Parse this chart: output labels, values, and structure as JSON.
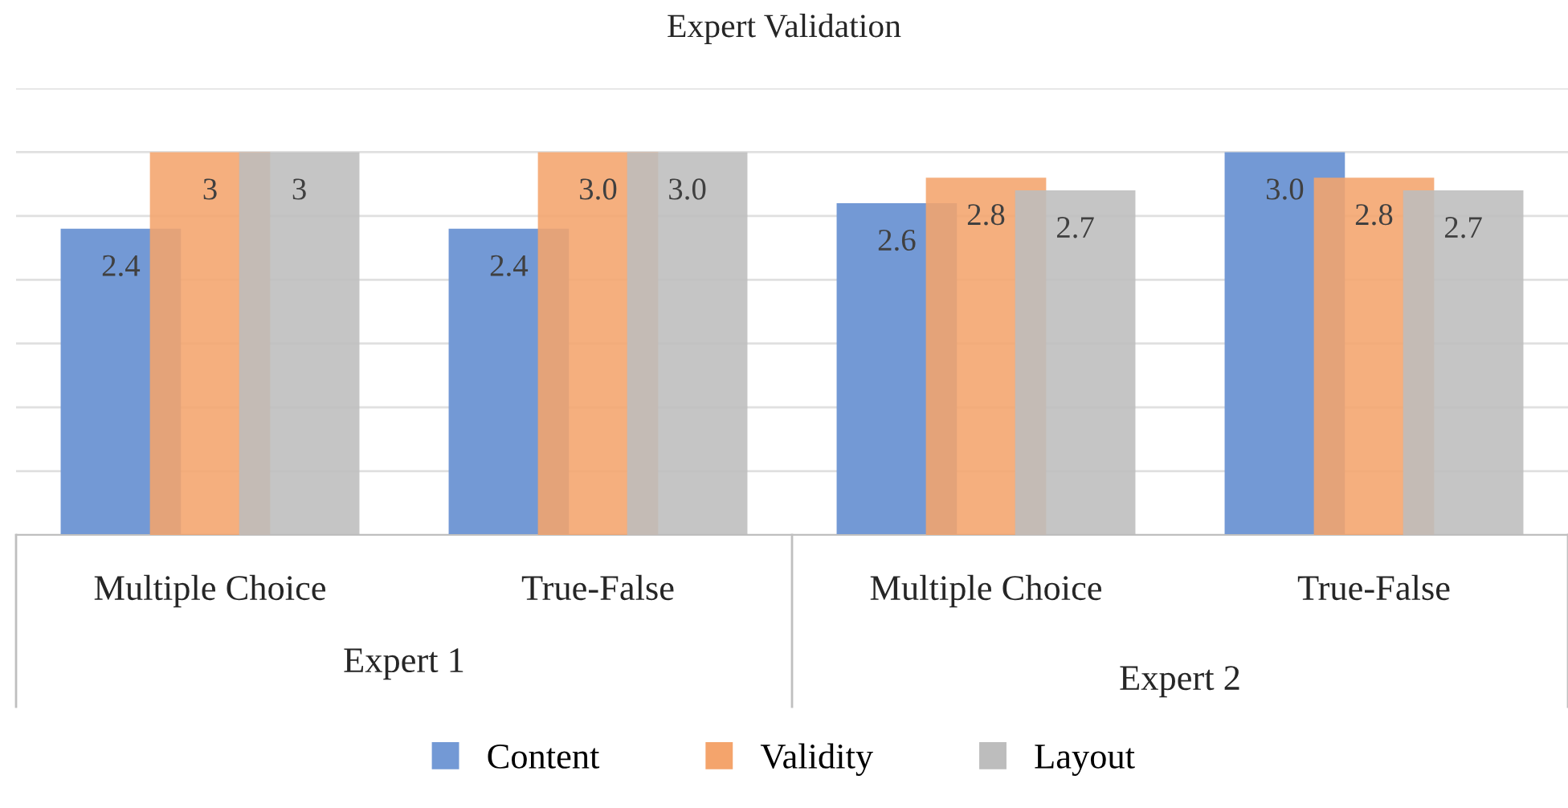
{
  "chart_data": {
    "type": "bar",
    "title": "Expert Validation",
    "categories": [
      "Multiple Choice",
      "True-False",
      "Multiple Choice",
      "True-False"
    ],
    "annotations": [
      "Expert 1",
      "Expert 2"
    ],
    "series": [
      {
        "name": "Content",
        "color": "#7399d5",
        "values": [
          2.4,
          2.4,
          2.6,
          3.0
        ],
        "value_labels": [
          "2.4",
          "2.4",
          "2.6",
          "3.0"
        ]
      },
      {
        "name": "Validity",
        "color": "#f4a46c",
        "values": [
          3,
          3.0,
          2.8,
          2.8
        ],
        "value_labels": [
          "3",
          "3.0",
          "2.8",
          "2.8"
        ]
      },
      {
        "name": "Layout",
        "color": "#bdbdbd",
        "values": [
          3,
          3.0,
          2.7,
          2.7
        ],
        "value_labels": [
          "3",
          "3.0",
          "2.7",
          "2.7"
        ]
      }
    ],
    "ylim": [
      0,
      3.5
    ],
    "yticks": [
      {
        "value": 0,
        "label": null
      },
      {
        "value": 0.5,
        "label": null
      },
      {
        "value": 1,
        "label": null
      },
      {
        "value": 1.5,
        "label": null
      },
      {
        "value": 2,
        "label": null
      },
      {
        "value": 2.5,
        "label": null
      },
      {
        "value": 3,
        "label": null
      },
      {
        "value": 3.5,
        "label": null
      }
    ],
    "tick_labels": "x",
    "grid": "y",
    "legend": "bottom"
  }
}
